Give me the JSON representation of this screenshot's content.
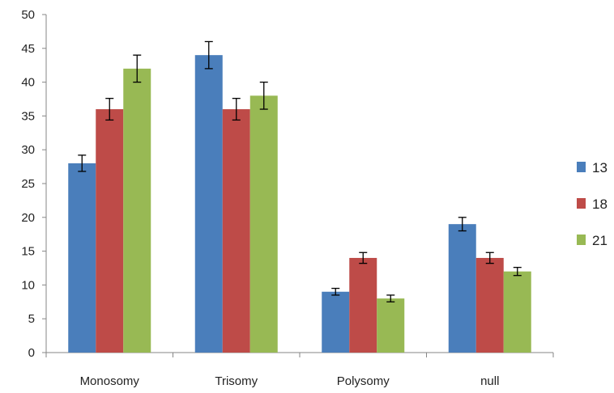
{
  "chart_data": {
    "type": "bar",
    "title": "",
    "xlabel": "",
    "ylabel": "",
    "categories": [
      "Monosomy",
      "Trisomy",
      "Polysomy",
      "null"
    ],
    "series": [
      {
        "name": "13",
        "color": "#4A7EBB",
        "values": [
          28,
          44,
          9,
          19
        ],
        "errors": [
          1.2,
          2.0,
          0.5,
          1.0
        ]
      },
      {
        "name": "18",
        "color": "#BE4B48",
        "values": [
          36,
          36,
          14,
          14
        ],
        "errors": [
          1.6,
          1.6,
          0.8,
          0.8
        ]
      },
      {
        "name": "21",
        "color": "#98B954",
        "values": [
          42,
          38,
          8,
          12
        ],
        "errors": [
          2.0,
          2.0,
          0.5,
          0.6
        ]
      }
    ],
    "ylim": [
      0,
      50
    ],
    "yticks": [
      0,
      5,
      10,
      15,
      20,
      25,
      30,
      35,
      40,
      45,
      50
    ],
    "grid": false,
    "legend_position": "right"
  }
}
